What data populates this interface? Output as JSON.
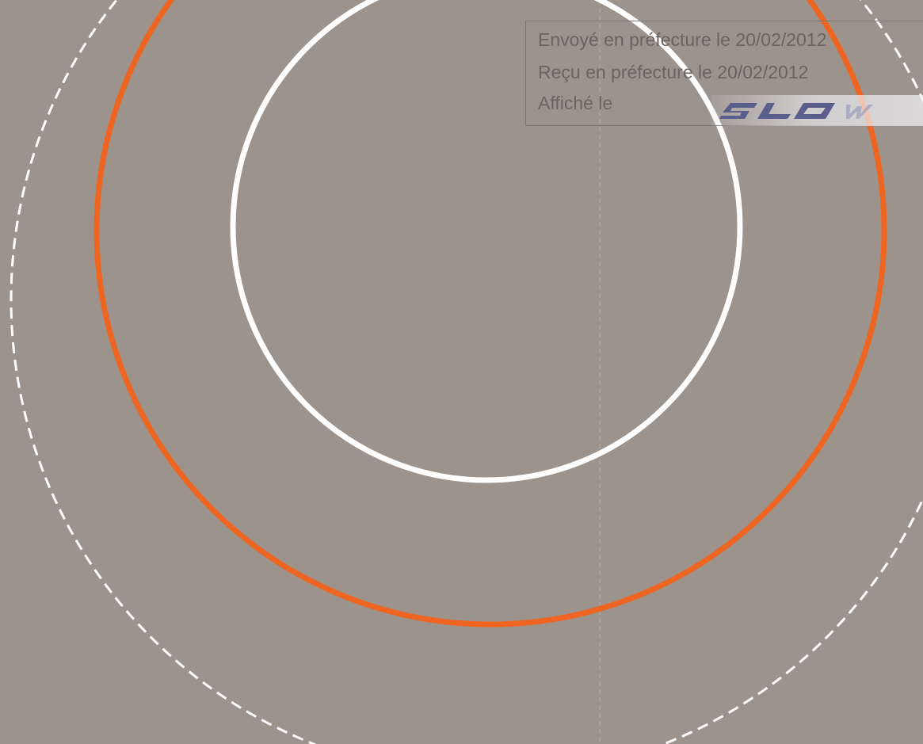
{
  "colors": {
    "background": "#9c938c",
    "inner_ring": "#ffffff",
    "middle_ring": "#ee6522",
    "outer_dashed_ring": "#ffffff",
    "stamp_text": "#6a6460",
    "logo": "#5a5e8a"
  },
  "stamp": {
    "sent_label": "Envoyé en préfecture le 20/02/2012",
    "received_label": "Reçu en préfecture le 20/02/2012",
    "posted_label": "Affiché le",
    "logo_text": "SLOW"
  }
}
